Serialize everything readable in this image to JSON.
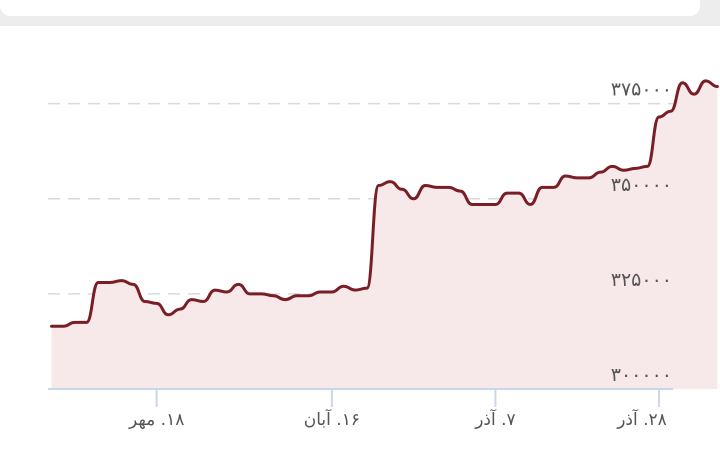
{
  "chart_data": {
    "type": "area",
    "title": "",
    "xlabel": "",
    "ylabel": "",
    "ylim": [
      300000,
      387000
    ],
    "y_ticks": [
      {
        "value": 300000,
        "label": "۳۰۰۰۰۰"
      },
      {
        "value": 325000,
        "label": "۳۲۵۰۰۰"
      },
      {
        "value": 350000,
        "label": "۳۵۰۰۰۰"
      },
      {
        "value": 375000,
        "label": "۳۷۵۰۰۰"
      }
    ],
    "x_ticks": [
      {
        "index": 9,
        "label": "۱۸. مهر"
      },
      {
        "index": 24,
        "label": "۱۶. آبان"
      },
      {
        "index": 38,
        "label": "۷. آذر"
      },
      {
        "index": 52,
        "label": "۲۸. آذر"
      }
    ],
    "x_range": [
      -0.3,
      53.2
    ],
    "grid": true,
    "legend": "none",
    "colors": {
      "line": "#7a1e26",
      "fill": "#f7e8e9",
      "grid": "#d9d9d9",
      "axis": "#c9d6ee"
    },
    "series": [
      {
        "values": [
          316500,
          316500,
          317500,
          317500,
          328000,
          328000,
          328500,
          327500,
          323000,
          322500,
          319500,
          321000,
          323500,
          323000,
          326000,
          325500,
          327500,
          325000,
          325000,
          324500,
          323500,
          324500,
          324500,
          325500,
          325500,
          327000,
          326000,
          326500,
          353500,
          354500,
          352500,
          350000,
          353500,
          353000,
          353000,
          352000,
          348500,
          348500,
          348500,
          351500,
          351500,
          348500,
          353000,
          353000,
          356000,
          355500,
          355500,
          357000,
          358500,
          357500,
          358000,
          358500,
          371500,
          373000,
          380500,
          377500,
          381000,
          379500
        ]
      }
    ]
  }
}
